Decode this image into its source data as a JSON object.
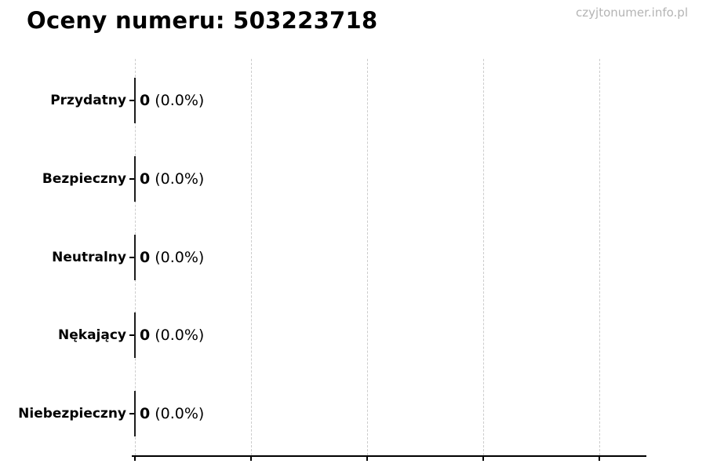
{
  "page": {
    "watermark": "czyjtonumer.info.pl",
    "background": "#ffffff"
  },
  "chart_data": {
    "type": "bar",
    "orientation": "horizontal",
    "title": "Oceny numeru: 503223718",
    "categories": [
      "Przydatny",
      "Bezpieczny",
      "Neutralny",
      "Nękający",
      "Niebezpieczny"
    ],
    "values": [
      0,
      0,
      0,
      0,
      0
    ],
    "counts": [
      "0",
      "0",
      "0",
      "0",
      "0"
    ],
    "percents": [
      "(0.0%)",
      "(0.0%)",
      "(0.0%)",
      "(0.0%)",
      "(0.0%)"
    ],
    "value_labels": [
      "0 (0.0%)",
      "0 (0.0%)",
      "0 (0.0%)",
      "0 (0.0%)",
      "0 (0.0%)"
    ],
    "xlabel": "",
    "ylabel": "",
    "legend": "none",
    "grid": {
      "axis": "x",
      "style": "dashed",
      "count": 5,
      "color": "#cccccc"
    },
    "axis_color": "#000000",
    "bar_edge_color": "#1c1c1c",
    "text_color": "#000000",
    "watermark_color": "#b4b4b4"
  }
}
